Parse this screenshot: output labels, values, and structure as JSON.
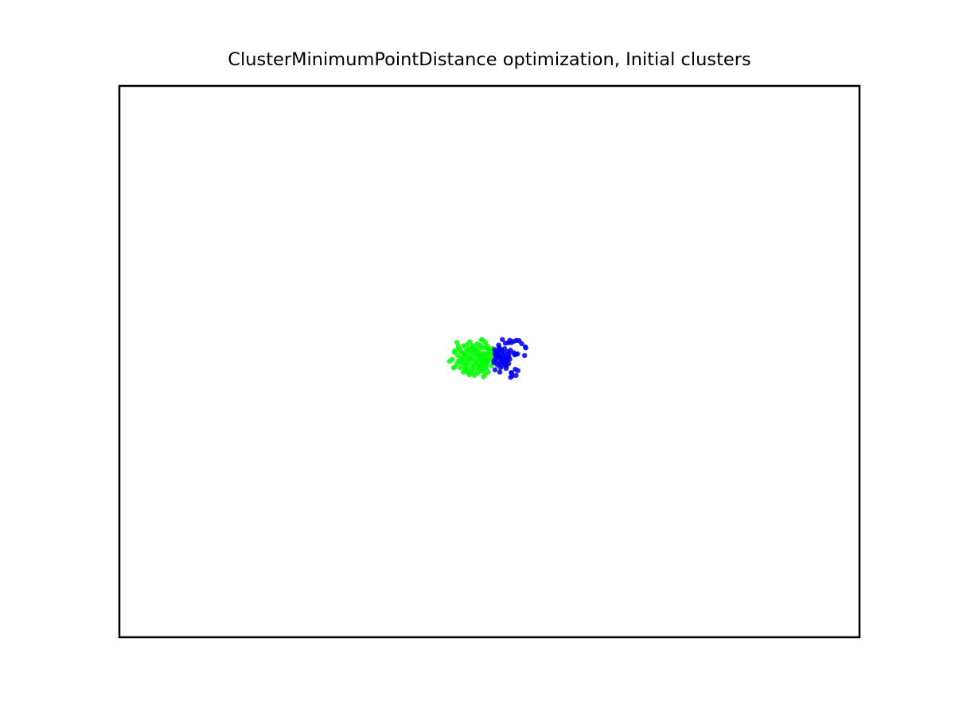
{
  "chart_data": {
    "type": "scatter",
    "title": "ClusterMinimumPointDistance optimization, Initial clusters",
    "xlabel": "",
    "ylabel": "",
    "xlim": [
      -1,
      1
    ],
    "ylim": [
      -1,
      1
    ],
    "axes_ticks": false,
    "grid": false,
    "legend": "none",
    "series": [
      {
        "color": "#00ff00",
        "points": [
          [
            -0.088,
            0.069
          ],
          [
            -0.07,
            0.057
          ],
          [
            -0.022,
            0.079
          ],
          [
            -0.019,
            0.078
          ],
          [
            -0.053,
            0.072
          ],
          [
            -0.082,
            0.045
          ],
          [
            -0.062,
            0.041
          ],
          [
            -0.048,
            0.05
          ],
          [
            -0.04,
            0.046
          ],
          [
            -0.031,
            0.047
          ],
          [
            -0.021,
            0.049
          ],
          [
            -0.012,
            0.05
          ],
          [
            -0.003,
            0.044
          ],
          [
            -0.095,
            0.034
          ],
          [
            -0.072,
            0.031
          ],
          [
            -0.064,
            0.027
          ],
          [
            -0.052,
            0.03
          ],
          [
            -0.043,
            0.033
          ],
          [
            -0.034,
            0.028
          ],
          [
            -0.026,
            0.03
          ],
          [
            -0.015,
            0.031
          ],
          [
            -0.008,
            0.026
          ],
          [
            0.001,
            0.029
          ],
          [
            -0.086,
            0.023
          ],
          [
            -0.077,
            0.015
          ],
          [
            -0.069,
            0.02
          ],
          [
            -0.058,
            0.018
          ],
          [
            -0.046,
            0.016
          ],
          [
            -0.037,
            0.021
          ],
          [
            -0.028,
            0.013
          ],
          [
            -0.019,
            0.018
          ],
          [
            -0.011,
            0.015
          ],
          [
            -0.002,
            0.012
          ],
          [
            -0.101,
            0.008
          ],
          [
            -0.083,
            0.004
          ],
          [
            -0.071,
            0.007
          ],
          [
            -0.061,
            0.003
          ],
          [
            -0.05,
            0.006
          ],
          [
            -0.04,
            0.002
          ],
          [
            -0.031,
            0.005
          ],
          [
            -0.022,
            0.001
          ],
          [
            -0.013,
            0.004
          ],
          [
            -0.005,
            0.0
          ],
          [
            0.003,
            0.006
          ],
          [
            -0.088,
            -0.007
          ],
          [
            -0.076,
            -0.004
          ],
          [
            -0.066,
            -0.01
          ],
          [
            -0.055,
            -0.006
          ],
          [
            -0.044,
            -0.012
          ],
          [
            -0.035,
            -0.008
          ],
          [
            -0.025,
            -0.014
          ],
          [
            -0.016,
            -0.009
          ],
          [
            -0.007,
            -0.011
          ],
          [
            -0.079,
            -0.022
          ],
          [
            -0.067,
            -0.019
          ],
          [
            -0.057,
            -0.025
          ],
          [
            -0.046,
            -0.021
          ],
          [
            -0.036,
            -0.028
          ],
          [
            -0.027,
            -0.024
          ],
          [
            -0.018,
            -0.03
          ],
          [
            -0.009,
            -0.026
          ],
          [
            -0.071,
            -0.038
          ],
          [
            -0.058,
            -0.041
          ],
          [
            -0.048,
            -0.036
          ],
          [
            -0.032,
            -0.043
          ],
          [
            -0.021,
            -0.034
          ],
          [
            -0.012,
            -0.046
          ],
          [
            -0.054,
            -0.048
          ],
          [
            -0.016,
            -0.055
          ],
          [
            -0.093,
            -0.02
          ],
          [
            -0.097,
            -0.022
          ],
          [
            -0.06,
            0.062
          ],
          [
            -0.045,
            0.058
          ],
          [
            -0.024,
            0.059
          ],
          [
            -0.005,
            0.056
          ],
          [
            0.008,
            0.048
          ],
          [
            0.011,
            0.035
          ],
          [
            0.009,
            0.02
          ],
          [
            -0.108,
            0.001
          ],
          [
            -0.065,
            -0.033
          ],
          [
            -0.041,
            -0.05
          ],
          [
            -0.003,
            -0.038
          ],
          [
            -0.084,
            0.055
          ],
          [
            -0.033,
            0.064
          ],
          [
            -0.011,
            0.069
          ],
          [
            -0.076,
            0.036
          ],
          [
            -0.054,
            0.011
          ],
          [
            -0.03,
            -0.016
          ],
          [
            -0.002,
            0.038
          ],
          [
            0.006,
            -0.015
          ],
          [
            -0.046,
            0.044
          ],
          [
            -0.025,
            0.022
          ],
          [
            -0.064,
            -0.014
          ],
          [
            -0.014,
            -0.018
          ],
          [
            -0.093,
            0.04
          ],
          [
            -0.036,
            0.036
          ],
          [
            -0.017,
            0.008
          ],
          [
            -0.058,
            0.045
          ],
          [
            -0.008,
            -0.004
          ]
        ]
      },
      {
        "color": "#0000ee",
        "points": [
          [
            0.035,
            0.08
          ],
          [
            0.065,
            0.073
          ],
          [
            0.073,
            0.077
          ],
          [
            0.08,
            0.076
          ],
          [
            0.055,
            0.077
          ],
          [
            0.087,
            0.065
          ],
          [
            0.059,
            0.069
          ],
          [
            0.051,
            0.068
          ],
          [
            0.097,
            0.053
          ],
          [
            0.098,
            0.05
          ],
          [
            0.026,
            0.051
          ],
          [
            0.041,
            0.047
          ],
          [
            0.033,
            0.04
          ],
          [
            0.05,
            0.036
          ],
          [
            0.057,
            0.041
          ],
          [
            0.066,
            0.032
          ],
          [
            0.071,
            0.026
          ],
          [
            0.076,
            0.028
          ],
          [
            0.095,
            0.022
          ],
          [
            0.014,
            0.043
          ],
          [
            0.02,
            0.036
          ],
          [
            0.027,
            0.03
          ],
          [
            0.036,
            0.025
          ],
          [
            0.044,
            0.021
          ],
          [
            0.052,
            0.018
          ],
          [
            0.017,
            0.022
          ],
          [
            0.023,
            0.014
          ],
          [
            0.031,
            0.01
          ],
          [
            0.039,
            0.013
          ],
          [
            0.047,
            0.007
          ],
          [
            0.055,
            0.009
          ],
          [
            0.013,
            0.005
          ],
          [
            0.02,
            -0.002
          ],
          [
            0.028,
            -0.006
          ],
          [
            0.036,
            -0.003
          ],
          [
            0.043,
            -0.01
          ],
          [
            0.052,
            -0.007
          ],
          [
            0.03,
            -0.022
          ],
          [
            0.045,
            -0.025
          ],
          [
            0.015,
            -0.03
          ],
          [
            0.028,
            -0.038
          ],
          [
            0.07,
            -0.028
          ],
          [
            0.06,
            -0.041
          ],
          [
            0.077,
            -0.033
          ],
          [
            0.062,
            -0.052
          ],
          [
            0.072,
            -0.05
          ],
          [
            0.057,
            -0.057
          ],
          [
            0.059,
            -0.04
          ],
          [
            0.025,
            0.06
          ],
          [
            0.043,
            0.067
          ],
          [
            0.018,
            0.015
          ],
          [
            0.021,
            0.029
          ],
          [
            0.035,
            -0.014
          ],
          [
            0.048,
            0.004
          ],
          [
            0.029,
            0.045
          ],
          [
            0.012,
            -0.004
          ],
          [
            0.039,
            0.032
          ],
          [
            0.046,
            -0.017
          ],
          [
            0.022,
            -0.012
          ],
          [
            0.034,
            0.005
          ],
          [
            0.068,
            0.025
          ],
          [
            0.015,
            0.03
          ],
          [
            0.024,
            0.02
          ],
          [
            0.04,
            -0.001
          ],
          [
            0.053,
            0.028
          ],
          [
            0.03,
            0.017
          ]
        ]
      }
    ]
  }
}
